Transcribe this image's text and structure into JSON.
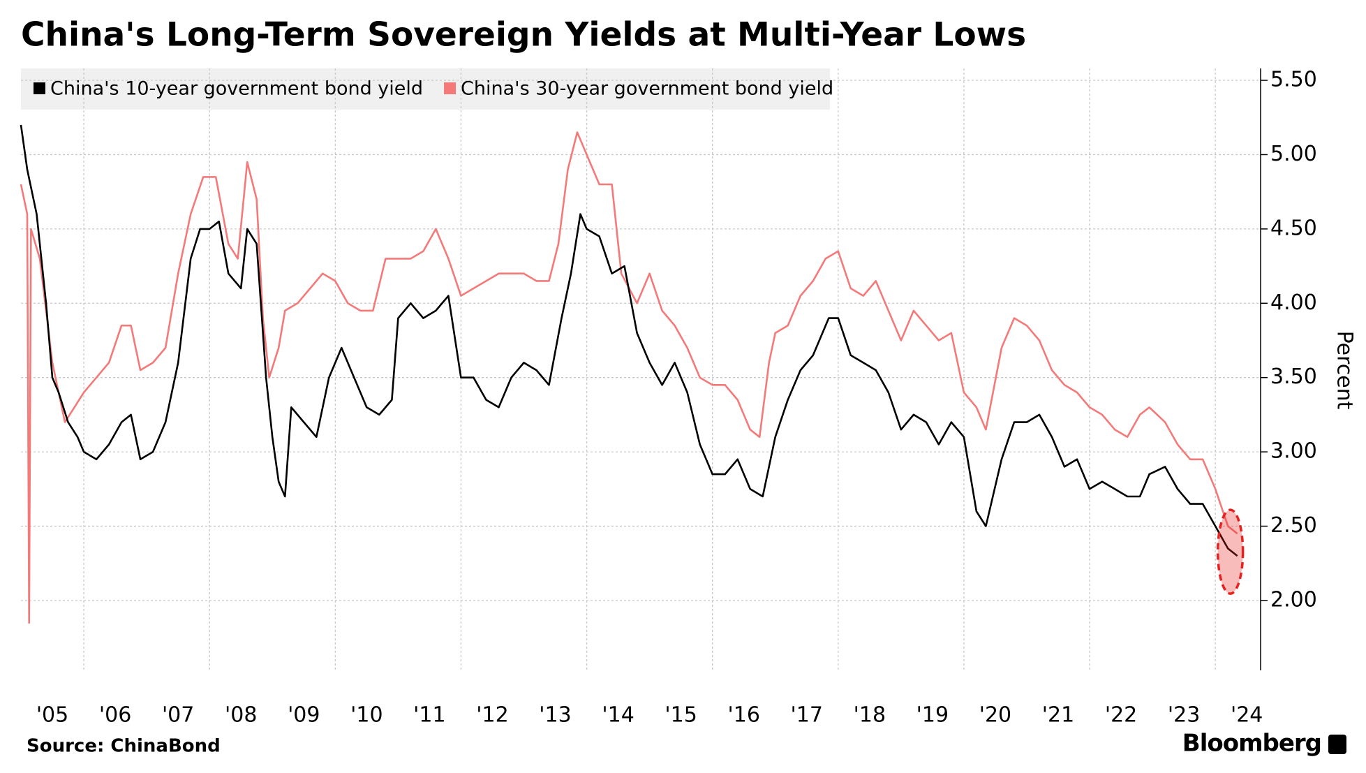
{
  "chart_data": {
    "type": "line",
    "title": "China's Long-Term Sovereign Yields at Multi-Year Lows",
    "y_axis_label": "Percent",
    "source": "Source: ChinaBond",
    "brand": "Bloomberg",
    "xlim": [
      2005.0,
      2024.72
    ],
    "xticks": [
      {
        "value": 2005.5,
        "label": "'05"
      },
      {
        "value": 2006.5,
        "label": "'06"
      },
      {
        "value": 2007.5,
        "label": "'07"
      },
      {
        "value": 2008.5,
        "label": "'08"
      },
      {
        "value": 2009.5,
        "label": "'09"
      },
      {
        "value": 2010.5,
        "label": "'10"
      },
      {
        "value": 2011.5,
        "label": "'11"
      },
      {
        "value": 2012.5,
        "label": "'12"
      },
      {
        "value": 2013.5,
        "label": "'13"
      },
      {
        "value": 2014.5,
        "label": "'14"
      },
      {
        "value": 2015.5,
        "label": "'15"
      },
      {
        "value": 2016.5,
        "label": "'16"
      },
      {
        "value": 2017.5,
        "label": "'17"
      },
      {
        "value": 2018.5,
        "label": "'18"
      },
      {
        "value": 2019.5,
        "label": "'19"
      },
      {
        "value": 2020.5,
        "label": "'20"
      },
      {
        "value": 2021.5,
        "label": "'21"
      },
      {
        "value": 2022.5,
        "label": "'22"
      },
      {
        "value": 2023.5,
        "label": "'23"
      },
      {
        "value": 2024.5,
        "label": "'24"
      }
    ],
    "xgrid": [
      2006,
      2008,
      2010,
      2012,
      2014,
      2016,
      2018,
      2020,
      2022,
      2024
    ],
    "ylim": [
      1.53,
      5.58
    ],
    "yticks": [
      {
        "value": 2,
        "label": "2.00"
      },
      {
        "value": 2.5,
        "label": "2.50"
      },
      {
        "value": 3,
        "label": "3.00"
      },
      {
        "value": 3.5,
        "label": "3.50"
      },
      {
        "value": 4,
        "label": "4.00"
      },
      {
        "value": 4.5,
        "label": "4.50"
      },
      {
        "value": 5,
        "label": "5.00"
      },
      {
        "value": 5.5,
        "label": "5.50"
      }
    ],
    "grid": true,
    "highlight_color": "#e8201e",
    "series": [
      {
        "name": "China's 30-year government bond yield",
        "color": "#f47a7a",
        "x": [
          2005.0,
          2005.1,
          2005.13,
          2005.16,
          2005.3,
          2005.5,
          2005.7,
          2005.85,
          2006.0,
          2006.2,
          2006.4,
          2006.6,
          2006.75,
          2006.9,
          2007.1,
          2007.3,
          2007.5,
          2007.7,
          2007.9,
          2008.1,
          2008.3,
          2008.45,
          2008.6,
          2008.75,
          2008.85,
          2008.95,
          2009.1,
          2009.2,
          2009.4,
          2009.6,
          2009.8,
          2010.0,
          2010.2,
          2010.4,
          2010.6,
          2010.8,
          2011.0,
          2011.2,
          2011.4,
          2011.6,
          2011.8,
          2012.0,
          2012.2,
          2012.4,
          2012.6,
          2012.8,
          2013.0,
          2013.2,
          2013.4,
          2013.55,
          2013.7,
          2013.85,
          2014.0,
          2014.2,
          2014.4,
          2014.55,
          2014.8,
          2015.0,
          2015.2,
          2015.4,
          2015.6,
          2015.8,
          2016.0,
          2016.2,
          2016.4,
          2016.6,
          2016.75,
          2016.9,
          2017.0,
          2017.2,
          2017.4,
          2017.6,
          2017.8,
          2018.0,
          2018.2,
          2018.4,
          2018.6,
          2018.8,
          2019.0,
          2019.2,
          2019.4,
          2019.6,
          2019.8,
          2020.0,
          2020.2,
          2020.35,
          2020.6,
          2020.8,
          2021.0,
          2021.2,
          2021.4,
          2021.6,
          2021.8,
          2022.0,
          2022.2,
          2022.4,
          2022.6,
          2022.8,
          2022.95,
          2023.2,
          2023.4,
          2023.6,
          2023.8,
          2024.0,
          2024.2,
          2024.35
        ],
        "values": [
          4.8,
          4.6,
          1.85,
          4.5,
          4.3,
          3.6,
          3.2,
          3.3,
          3.4,
          3.5,
          3.6,
          3.85,
          3.85,
          3.55,
          3.6,
          3.7,
          4.2,
          4.6,
          4.85,
          4.85,
          4.4,
          4.3,
          4.95,
          4.7,
          3.9,
          3.5,
          3.7,
          3.95,
          4.0,
          4.1,
          4.2,
          4.15,
          4.0,
          3.95,
          3.95,
          4.3,
          4.3,
          4.3,
          4.35,
          4.5,
          4.3,
          4.05,
          4.1,
          4.15,
          4.2,
          4.2,
          4.2,
          4.15,
          4.15,
          4.4,
          4.9,
          5.15,
          5.0,
          4.8,
          4.8,
          4.2,
          4.0,
          4.2,
          3.95,
          3.85,
          3.7,
          3.5,
          3.45,
          3.45,
          3.35,
          3.15,
          3.1,
          3.6,
          3.8,
          3.85,
          4.05,
          4.15,
          4.3,
          4.35,
          4.1,
          4.05,
          4.15,
          3.95,
          3.75,
          3.95,
          3.85,
          3.75,
          3.8,
          3.4,
          3.3,
          3.15,
          3.7,
          3.9,
          3.85,
          3.75,
          3.55,
          3.45,
          3.4,
          3.3,
          3.25,
          3.15,
          3.1,
          3.25,
          3.3,
          3.2,
          3.05,
          2.95,
          2.95,
          2.75,
          2.5,
          2.45
        ]
      },
      {
        "name": "China's 10-year government bond yield",
        "color": "#000000",
        "x": [
          2005.0,
          2005.1,
          2005.25,
          2005.4,
          2005.5,
          2005.6,
          2005.75,
          2005.9,
          2006.0,
          2006.2,
          2006.4,
          2006.6,
          2006.75,
          2006.9,
          2007.1,
          2007.3,
          2007.5,
          2007.7,
          2007.85,
          2008.0,
          2008.15,
          2008.3,
          2008.5,
          2008.6,
          2008.75,
          2008.9,
          2009.0,
          2009.1,
          2009.2,
          2009.3,
          2009.5,
          2009.7,
          2009.9,
          2010.1,
          2010.3,
          2010.5,
          2010.7,
          2010.9,
          2011.0,
          2011.2,
          2011.4,
          2011.6,
          2011.8,
          2012.0,
          2012.2,
          2012.4,
          2012.6,
          2012.8,
          2013.0,
          2013.2,
          2013.4,
          2013.6,
          2013.75,
          2013.9,
          2014.0,
          2014.2,
          2014.4,
          2014.6,
          2014.8,
          2015.0,
          2015.2,
          2015.4,
          2015.6,
          2015.8,
          2016.0,
          2016.2,
          2016.4,
          2016.6,
          2016.8,
          2017.0,
          2017.2,
          2017.4,
          2017.6,
          2017.85,
          2018.0,
          2018.2,
          2018.4,
          2018.6,
          2018.8,
          2019.0,
          2019.2,
          2019.4,
          2019.6,
          2019.8,
          2020.0,
          2020.2,
          2020.35,
          2020.6,
          2020.8,
          2021.0,
          2021.2,
          2021.4,
          2021.6,
          2021.8,
          2022.0,
          2022.2,
          2022.4,
          2022.6,
          2022.8,
          2022.95,
          2023.2,
          2023.4,
          2023.6,
          2023.8,
          2024.0,
          2024.2,
          2024.35
        ],
        "values": [
          5.2,
          4.9,
          4.6,
          4.0,
          3.5,
          3.4,
          3.2,
          3.1,
          3.0,
          2.95,
          3.05,
          3.2,
          3.25,
          2.95,
          3.0,
          3.2,
          3.6,
          4.3,
          4.5,
          4.5,
          4.55,
          4.2,
          4.1,
          4.5,
          4.4,
          3.5,
          3.1,
          2.8,
          2.7,
          3.3,
          3.2,
          3.1,
          3.5,
          3.7,
          3.5,
          3.3,
          3.25,
          3.35,
          3.9,
          4.0,
          3.9,
          3.95,
          4.05,
          3.5,
          3.5,
          3.35,
          3.3,
          3.5,
          3.6,
          3.55,
          3.45,
          3.9,
          4.2,
          4.6,
          4.5,
          4.45,
          4.2,
          4.25,
          3.8,
          3.6,
          3.45,
          3.6,
          3.4,
          3.05,
          2.85,
          2.85,
          2.95,
          2.75,
          2.7,
          3.1,
          3.35,
          3.55,
          3.65,
          3.9,
          3.9,
          3.65,
          3.6,
          3.55,
          3.4,
          3.15,
          3.25,
          3.2,
          3.05,
          3.2,
          3.1,
          2.6,
          2.5,
          2.95,
          3.2,
          3.2,
          3.25,
          3.1,
          2.9,
          2.95,
          2.75,
          2.8,
          2.75,
          2.7,
          2.7,
          2.85,
          2.9,
          2.75,
          2.65,
          2.65,
          2.5,
          2.35,
          2.3
        ]
      }
    ],
    "legend_order": [
      1,
      0
    ]
  }
}
